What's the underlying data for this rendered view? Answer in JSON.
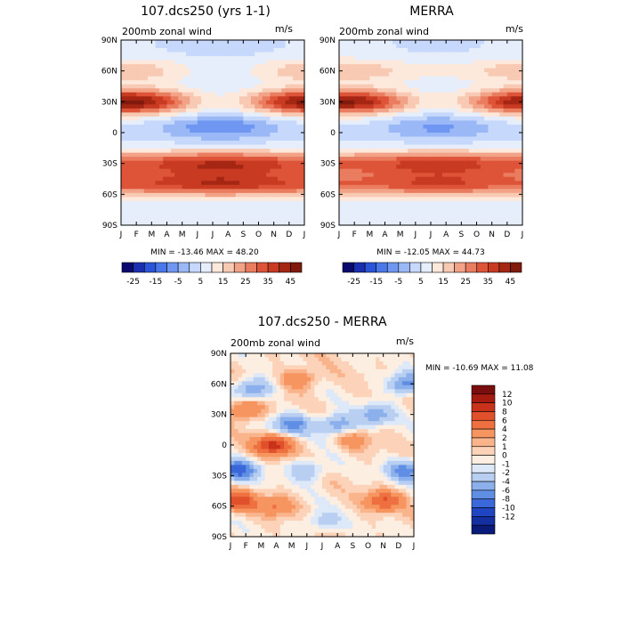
{
  "chart_data": [
    {
      "type": "heatmap",
      "title": "107.dcs250 (yrs 1-1)",
      "variable": "200mb zonal wind",
      "units": "m/s",
      "stats": "MIN = -13.46 MAX =  48.20",
      "x_ticks": [
        "J",
        "F",
        "M",
        "A",
        "M",
        "J",
        "J",
        "A",
        "S",
        "O",
        "N",
        "D",
        "J"
      ],
      "y_ticks": [
        "90N",
        "60N",
        "30N",
        "0",
        "30S",
        "60S",
        "90S"
      ],
      "ylim": [
        -90,
        90
      ],
      "colorbar": {
        "orientation": "horizontal",
        "labels": [
          "-25",
          "-15",
          "-5",
          "5",
          "15",
          "25",
          "35",
          "45"
        ],
        "colors": [
          "#0a0a6e",
          "#1a2fb0",
          "#2b55d8",
          "#4a78ea",
          "#6f97f2",
          "#9bb8f6",
          "#c6d8fb",
          "#e6eefc",
          "#fde8dc",
          "#f8c9b3",
          "#f2a387",
          "#ea7c5f",
          "#de5438",
          "#c83a22",
          "#a52713",
          "#7f1a0c"
        ]
      },
      "bands": [
        {
          "lat": 90,
          "amp": -2,
          "var": 3
        },
        {
          "lat": 60,
          "amp": 8,
          "var": 6
        },
        {
          "lat": 30,
          "amp": 25,
          "var": 18
        },
        {
          "lat": 5,
          "amp": -8,
          "var": 6
        },
        {
          "lat": -30,
          "amp": 30,
          "var": 10
        },
        {
          "lat": -50,
          "amp": 30,
          "var": 8
        },
        {
          "lat": -90,
          "amp": 2,
          "var": 2
        }
      ]
    },
    {
      "type": "heatmap",
      "title": "MERRA",
      "variable": "200mb zonal wind",
      "units": "m/s",
      "stats": "MIN = -12.05 MAX =  44.73",
      "x_ticks": [
        "J",
        "F",
        "M",
        "A",
        "M",
        "J",
        "J",
        "A",
        "S",
        "O",
        "N",
        "D",
        "J"
      ],
      "y_ticks": [
        "90N",
        "60N",
        "30N",
        "0",
        "30S",
        "60S",
        "90S"
      ],
      "ylim": [
        -90,
        90
      ],
      "colorbar": {
        "orientation": "horizontal",
        "labels": [
          "-25",
          "-15",
          "-5",
          "5",
          "15",
          "25",
          "35",
          "45"
        ],
        "colors": [
          "#0a0a6e",
          "#1a2fb0",
          "#2b55d8",
          "#4a78ea",
          "#6f97f2",
          "#9bb8f6",
          "#c6d8fb",
          "#e6eefc",
          "#fde8dc",
          "#f8c9b3",
          "#f2a387",
          "#ea7c5f",
          "#de5438",
          "#c83a22",
          "#a52713",
          "#7f1a0c"
        ]
      },
      "bands": [
        {
          "lat": 90,
          "amp": 0,
          "var": 2
        },
        {
          "lat": 60,
          "amp": 10,
          "var": 4
        },
        {
          "lat": 30,
          "amp": 24,
          "var": 17
        },
        {
          "lat": 5,
          "amp": -6,
          "var": 5
        },
        {
          "lat": -30,
          "amp": 28,
          "var": 9
        },
        {
          "lat": -50,
          "amp": 26,
          "var": 7
        },
        {
          "lat": -90,
          "amp": 4,
          "var": 2
        }
      ]
    },
    {
      "type": "heatmap",
      "title": "107.dcs250 - MERRA",
      "variable": "200mb zonal wind",
      "units": "m/s",
      "stats": "MIN = -10.69 MAX =  11.08",
      "x_ticks": [
        "J",
        "F",
        "M",
        "A",
        "M",
        "J",
        "J",
        "A",
        "S",
        "O",
        "N",
        "D",
        "J"
      ],
      "y_ticks": [
        "90N",
        "60N",
        "30N",
        "0",
        "30S",
        "60S",
        "90S"
      ],
      "ylim": [
        -90,
        90
      ],
      "colorbar": {
        "orientation": "vertical",
        "labels": [
          "12",
          "10",
          "8",
          "6",
          "4",
          "2",
          "1",
          "0",
          "-1",
          "-2",
          "-4",
          "-6",
          "-8",
          "-10",
          "-12"
        ],
        "colors": [
          "#7a0d0d",
          "#a61b10",
          "#c9321a",
          "#e0502b",
          "#ee7040",
          "#f6955f",
          "#f9b48c",
          "#fcd3b8",
          "#fdeee2",
          "#dde8f8",
          "#b9cff2",
          "#8cb0ec",
          "#5f8ee4",
          "#3a68d8",
          "#2045c2",
          "#132fa0",
          "#0a1a78"
        ]
      },
      "patches": [
        {
          "lat": 55,
          "mon": 1.5,
          "amp": -6
        },
        {
          "lat": 60,
          "mon": 11.5,
          "amp": -7
        },
        {
          "lat": 20,
          "mon": 4,
          "amp": -7
        },
        {
          "lat": 20,
          "mon": 7,
          "amp": -6
        },
        {
          "lat": 30,
          "mon": 9.5,
          "amp": -5
        },
        {
          "lat": 35,
          "mon": 1,
          "amp": 5
        },
        {
          "lat": 65,
          "mon": 4.5,
          "amp": 4
        },
        {
          "lat": 0,
          "mon": 2.8,
          "amp": 9
        },
        {
          "lat": -25,
          "mon": 0.5,
          "amp": -9
        },
        {
          "lat": -25,
          "mon": 11.5,
          "amp": -7
        },
        {
          "lat": -25,
          "mon": 5,
          "amp": -4
        },
        {
          "lat": -55,
          "mon": 0.5,
          "amp": 7
        },
        {
          "lat": -55,
          "mon": 10,
          "amp": 6
        },
        {
          "lat": -60,
          "mon": 3,
          "amp": 4
        },
        {
          "lat": -75,
          "mon": 6,
          "amp": -3
        },
        {
          "lat": 5,
          "mon": 8,
          "amp": 3
        }
      ]
    }
  ]
}
